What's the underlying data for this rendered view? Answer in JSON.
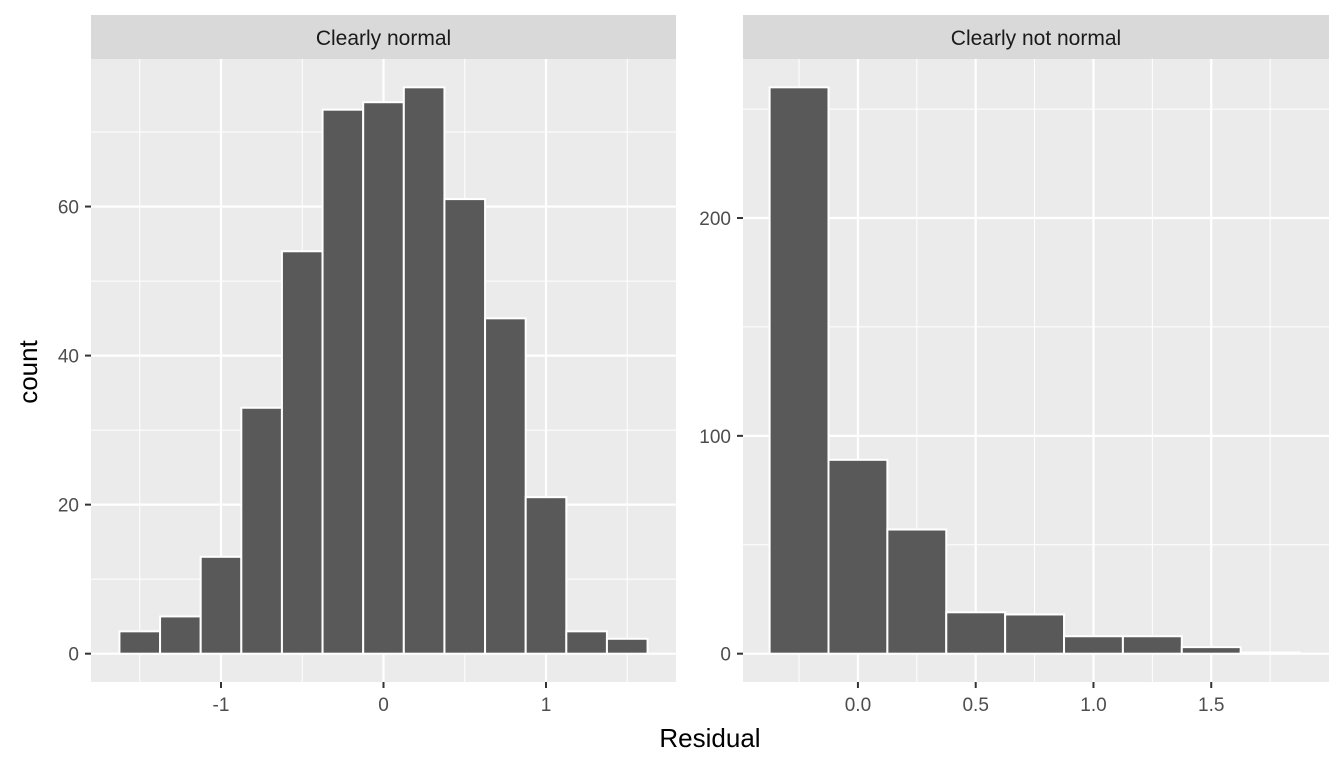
{
  "figure": {
    "xlabel": "Residual",
    "ylabel": "count"
  },
  "chart_data": [
    {
      "type": "bar",
      "title": "Clearly normal",
      "xlim": [
        -1.8,
        1.8
      ],
      "ylim": [
        -3.8,
        79.8
      ],
      "xticks": [
        -1,
        0,
        1
      ],
      "xtick_labels": [
        "-1",
        "0",
        "1"
      ],
      "yticks": [
        0,
        20,
        40,
        60
      ],
      "ytick_labels": [
        "0",
        "20",
        "40",
        "60"
      ],
      "grid": true,
      "bin_width": 0.25,
      "bins": [
        {
          "x0": -1.625,
          "x1": -1.375,
          "count": 3
        },
        {
          "x0": -1.375,
          "x1": -1.125,
          "count": 5
        },
        {
          "x0": -1.125,
          "x1": -0.875,
          "count": 13
        },
        {
          "x0": -0.875,
          "x1": -0.625,
          "count": 33
        },
        {
          "x0": -0.625,
          "x1": -0.375,
          "count": 54
        },
        {
          "x0": -0.375,
          "x1": -0.125,
          "count": 73
        },
        {
          "x0": -0.125,
          "x1": 0.125,
          "count": 74
        },
        {
          "x0": 0.125,
          "x1": 0.375,
          "count": 76
        },
        {
          "x0": 0.375,
          "x1": 0.625,
          "count": 61
        },
        {
          "x0": 0.625,
          "x1": 0.875,
          "count": 45
        },
        {
          "x0": 0.875,
          "x1": 1.125,
          "count": 21
        },
        {
          "x0": 1.125,
          "x1": 1.375,
          "count": 3
        },
        {
          "x0": 1.375,
          "x1": 1.625,
          "count": 2
        }
      ]
    },
    {
      "type": "bar",
      "title": "Clearly not normal",
      "xlim": [
        -0.488,
        2.0
      ],
      "ylim": [
        -13,
        273
      ],
      "xticks": [
        0.0,
        0.5,
        1.0,
        1.5
      ],
      "xtick_labels": [
        "0.0",
        "0.5",
        "1.0",
        "1.5"
      ],
      "yticks": [
        0,
        100,
        200
      ],
      "ytick_labels": [
        "0",
        "100",
        "200"
      ],
      "grid": true,
      "bin_width": 0.25,
      "bins": [
        {
          "x0": -0.375,
          "x1": -0.125,
          "count": 260
        },
        {
          "x0": -0.125,
          "x1": 0.125,
          "count": 89
        },
        {
          "x0": 0.125,
          "x1": 0.375,
          "count": 57
        },
        {
          "x0": 0.375,
          "x1": 0.625,
          "count": 19
        },
        {
          "x0": 0.625,
          "x1": 0.875,
          "count": 18
        },
        {
          "x0": 0.875,
          "x1": 1.125,
          "count": 8
        },
        {
          "x0": 1.125,
          "x1": 1.375,
          "count": 8
        },
        {
          "x0": 1.375,
          "x1": 1.625,
          "count": 3
        },
        {
          "x0": 1.625,
          "x1": 1.875,
          "count": 0.5
        }
      ]
    }
  ],
  "colors": {
    "panel_bg": "#ebebeb",
    "strip_bg": "#d9d9d9",
    "grid": "#ffffff",
    "bar_fill": "#595959",
    "bar_outline": "#ffffff",
    "tick_mark": "#333333"
  }
}
